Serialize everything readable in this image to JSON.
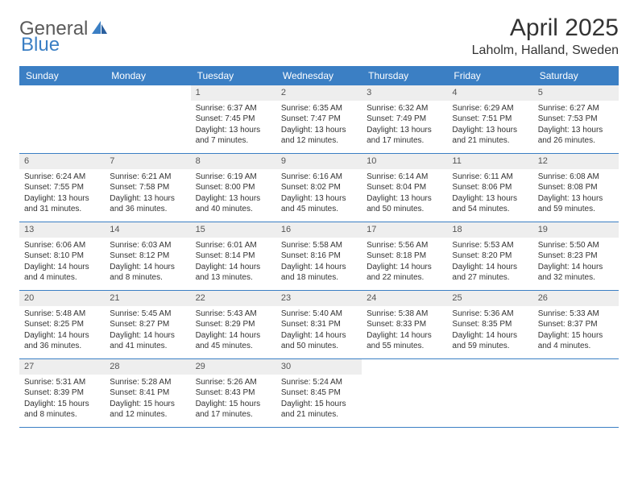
{
  "logo": {
    "text1": "General",
    "text2": "Blue"
  },
  "title": "April 2025",
  "location": "Laholm, Halland, Sweden",
  "colors": {
    "header_bg": "#3b7fc4",
    "daynum_bg": "#eeeeee",
    "text": "#333333",
    "logo_gray": "#5a5a5a"
  },
  "weekdays": [
    "Sunday",
    "Monday",
    "Tuesday",
    "Wednesday",
    "Thursday",
    "Friday",
    "Saturday"
  ],
  "weeks": [
    [
      {
        "n": "",
        "sr": "",
        "ss": "",
        "dl": ""
      },
      {
        "n": "",
        "sr": "",
        "ss": "",
        "dl": ""
      },
      {
        "n": "1",
        "sr": "Sunrise: 6:37 AM",
        "ss": "Sunset: 7:45 PM",
        "dl": "Daylight: 13 hours and 7 minutes."
      },
      {
        "n": "2",
        "sr": "Sunrise: 6:35 AM",
        "ss": "Sunset: 7:47 PM",
        "dl": "Daylight: 13 hours and 12 minutes."
      },
      {
        "n": "3",
        "sr": "Sunrise: 6:32 AM",
        "ss": "Sunset: 7:49 PM",
        "dl": "Daylight: 13 hours and 17 minutes."
      },
      {
        "n": "4",
        "sr": "Sunrise: 6:29 AM",
        "ss": "Sunset: 7:51 PM",
        "dl": "Daylight: 13 hours and 21 minutes."
      },
      {
        "n": "5",
        "sr": "Sunrise: 6:27 AM",
        "ss": "Sunset: 7:53 PM",
        "dl": "Daylight: 13 hours and 26 minutes."
      }
    ],
    [
      {
        "n": "6",
        "sr": "Sunrise: 6:24 AM",
        "ss": "Sunset: 7:55 PM",
        "dl": "Daylight: 13 hours and 31 minutes."
      },
      {
        "n": "7",
        "sr": "Sunrise: 6:21 AM",
        "ss": "Sunset: 7:58 PM",
        "dl": "Daylight: 13 hours and 36 minutes."
      },
      {
        "n": "8",
        "sr": "Sunrise: 6:19 AM",
        "ss": "Sunset: 8:00 PM",
        "dl": "Daylight: 13 hours and 40 minutes."
      },
      {
        "n": "9",
        "sr": "Sunrise: 6:16 AM",
        "ss": "Sunset: 8:02 PM",
        "dl": "Daylight: 13 hours and 45 minutes."
      },
      {
        "n": "10",
        "sr": "Sunrise: 6:14 AM",
        "ss": "Sunset: 8:04 PM",
        "dl": "Daylight: 13 hours and 50 minutes."
      },
      {
        "n": "11",
        "sr": "Sunrise: 6:11 AM",
        "ss": "Sunset: 8:06 PM",
        "dl": "Daylight: 13 hours and 54 minutes."
      },
      {
        "n": "12",
        "sr": "Sunrise: 6:08 AM",
        "ss": "Sunset: 8:08 PM",
        "dl": "Daylight: 13 hours and 59 minutes."
      }
    ],
    [
      {
        "n": "13",
        "sr": "Sunrise: 6:06 AM",
        "ss": "Sunset: 8:10 PM",
        "dl": "Daylight: 14 hours and 4 minutes."
      },
      {
        "n": "14",
        "sr": "Sunrise: 6:03 AM",
        "ss": "Sunset: 8:12 PM",
        "dl": "Daylight: 14 hours and 8 minutes."
      },
      {
        "n": "15",
        "sr": "Sunrise: 6:01 AM",
        "ss": "Sunset: 8:14 PM",
        "dl": "Daylight: 14 hours and 13 minutes."
      },
      {
        "n": "16",
        "sr": "Sunrise: 5:58 AM",
        "ss": "Sunset: 8:16 PM",
        "dl": "Daylight: 14 hours and 18 minutes."
      },
      {
        "n": "17",
        "sr": "Sunrise: 5:56 AM",
        "ss": "Sunset: 8:18 PM",
        "dl": "Daylight: 14 hours and 22 minutes."
      },
      {
        "n": "18",
        "sr": "Sunrise: 5:53 AM",
        "ss": "Sunset: 8:20 PM",
        "dl": "Daylight: 14 hours and 27 minutes."
      },
      {
        "n": "19",
        "sr": "Sunrise: 5:50 AM",
        "ss": "Sunset: 8:23 PM",
        "dl": "Daylight: 14 hours and 32 minutes."
      }
    ],
    [
      {
        "n": "20",
        "sr": "Sunrise: 5:48 AM",
        "ss": "Sunset: 8:25 PM",
        "dl": "Daylight: 14 hours and 36 minutes."
      },
      {
        "n": "21",
        "sr": "Sunrise: 5:45 AM",
        "ss": "Sunset: 8:27 PM",
        "dl": "Daylight: 14 hours and 41 minutes."
      },
      {
        "n": "22",
        "sr": "Sunrise: 5:43 AM",
        "ss": "Sunset: 8:29 PM",
        "dl": "Daylight: 14 hours and 45 minutes."
      },
      {
        "n": "23",
        "sr": "Sunrise: 5:40 AM",
        "ss": "Sunset: 8:31 PM",
        "dl": "Daylight: 14 hours and 50 minutes."
      },
      {
        "n": "24",
        "sr": "Sunrise: 5:38 AM",
        "ss": "Sunset: 8:33 PM",
        "dl": "Daylight: 14 hours and 55 minutes."
      },
      {
        "n": "25",
        "sr": "Sunrise: 5:36 AM",
        "ss": "Sunset: 8:35 PM",
        "dl": "Daylight: 14 hours and 59 minutes."
      },
      {
        "n": "26",
        "sr": "Sunrise: 5:33 AM",
        "ss": "Sunset: 8:37 PM",
        "dl": "Daylight: 15 hours and 4 minutes."
      }
    ],
    [
      {
        "n": "27",
        "sr": "Sunrise: 5:31 AM",
        "ss": "Sunset: 8:39 PM",
        "dl": "Daylight: 15 hours and 8 minutes."
      },
      {
        "n": "28",
        "sr": "Sunrise: 5:28 AM",
        "ss": "Sunset: 8:41 PM",
        "dl": "Daylight: 15 hours and 12 minutes."
      },
      {
        "n": "29",
        "sr": "Sunrise: 5:26 AM",
        "ss": "Sunset: 8:43 PM",
        "dl": "Daylight: 15 hours and 17 minutes."
      },
      {
        "n": "30",
        "sr": "Sunrise: 5:24 AM",
        "ss": "Sunset: 8:45 PM",
        "dl": "Daylight: 15 hours and 21 minutes."
      },
      {
        "n": "",
        "sr": "",
        "ss": "",
        "dl": ""
      },
      {
        "n": "",
        "sr": "",
        "ss": "",
        "dl": ""
      },
      {
        "n": "",
        "sr": "",
        "ss": "",
        "dl": ""
      }
    ]
  ]
}
